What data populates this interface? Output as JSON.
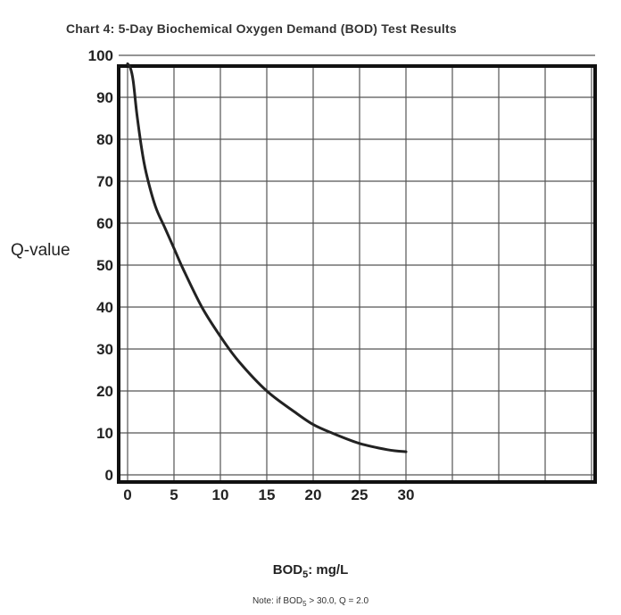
{
  "chart_data": {
    "type": "line",
    "title": "Chart 4: 5-Day Biochemical Oxygen Demand (BOD) Test Results",
    "xlabel_main": "BOD",
    "xlabel_sub": "5",
    "xlabel_unit": ": mg/L",
    "ylabel": "Q-value",
    "xlim": [
      0,
      30
    ],
    "ylim": [
      0,
      100
    ],
    "x_ticks": [
      "0",
      "5",
      "10",
      "15",
      "20",
      "25",
      "30"
    ],
    "y_ticks": [
      "0",
      "10",
      "20",
      "30",
      "40",
      "50",
      "60",
      "70",
      "80",
      "90",
      "100"
    ],
    "grid": true,
    "series": [
      {
        "x": [
          0,
          0.3,
          0.6,
          1,
          1.5,
          2,
          3,
          4,
          5,
          6,
          8,
          10,
          12,
          15,
          18,
          20,
          22,
          25,
          28,
          30
        ],
        "y": [
          98,
          97,
          94,
          86,
          78,
          72,
          64,
          59,
          54,
          49,
          40,
          33,
          27,
          20,
          15,
          12,
          10,
          7.5,
          6,
          5.5
        ],
        "color": "#222222"
      }
    ]
  },
  "note": {
    "prefix": "Note: if BOD",
    "sub": "5",
    "suffix": " > 30.0, Q = 2.0"
  }
}
